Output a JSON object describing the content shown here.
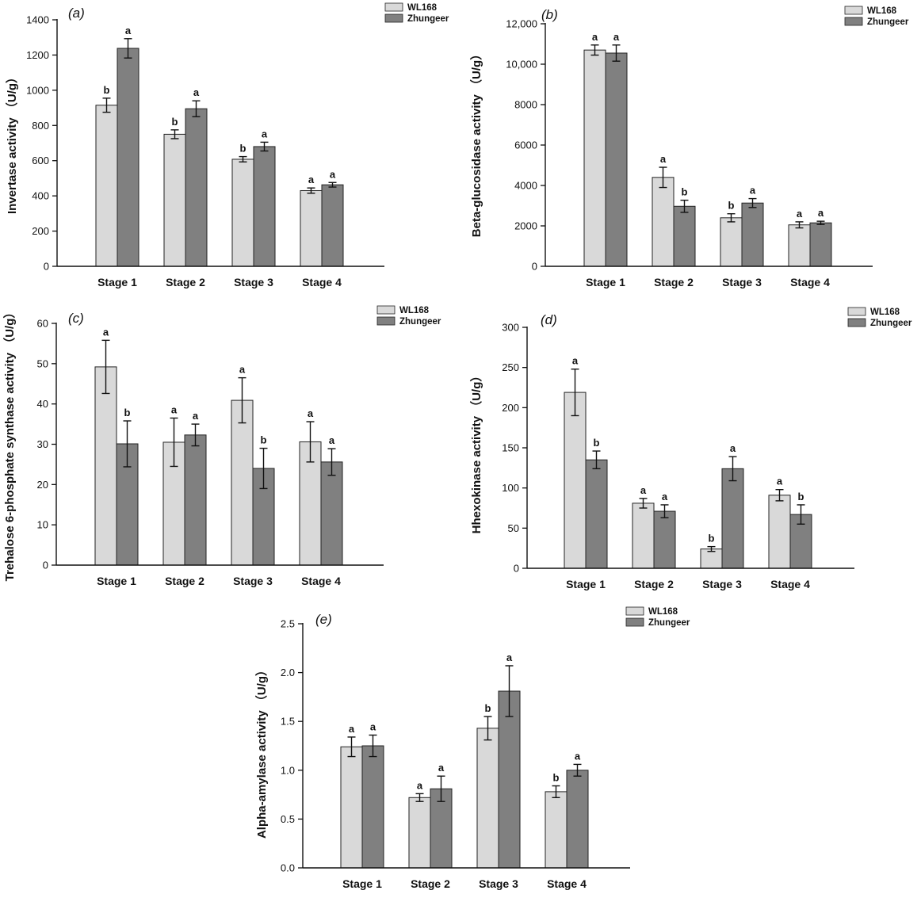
{
  "colors": {
    "WL168": "#d9d9d9",
    "Zhungeer": "#808080",
    "stroke": "#222222"
  },
  "chart_data": [
    {
      "type": "bar",
      "panel_label": "(a)",
      "categories": [
        "Stage 1",
        "Stage 2",
        "Stage 3",
        "Stage 4"
      ],
      "ylabel": "Invertase activity （U/g）",
      "ylim": [
        0,
        1400
      ],
      "yticks": [
        0,
        200,
        400,
        600,
        800,
        1000,
        1200,
        1400
      ],
      "ytick_labels": [
        "0",
        "200",
        "400",
        "600",
        "800",
        "1000",
        "1200",
        "1400"
      ],
      "legend_position": "top-right",
      "series": [
        {
          "name": "WL168",
          "values": [
            915,
            750,
            608,
            430
          ],
          "errors": [
            40,
            25,
            15,
            15
          ],
          "sig": [
            "b",
            "b",
            "b",
            "a"
          ]
        },
        {
          "name": "Zhungeer",
          "values": [
            1238,
            895,
            680,
            463
          ],
          "errors": [
            55,
            45,
            25,
            13
          ],
          "sig": [
            "a",
            "a",
            "a",
            "a"
          ]
        }
      ]
    },
    {
      "type": "bar",
      "panel_label": "(b)",
      "categories": [
        "Stage 1",
        "Stage 2",
        "Stage 3",
        "Stage 4"
      ],
      "ylabel": "Beta-glucosidase activity （U/g）",
      "ylim": [
        0,
        12000
      ],
      "yticks": [
        0,
        2000,
        4000,
        6000,
        8000,
        10000,
        12000
      ],
      "ytick_labels": [
        "0",
        "2000",
        "4000",
        "6000",
        "8000",
        "10,000",
        "12,000"
      ],
      "legend_position": "top-right",
      "series": [
        {
          "name": "WL168",
          "values": [
            10700,
            4400,
            2400,
            2050
          ],
          "errors": [
            250,
            500,
            200,
            150
          ],
          "sig": [
            "a",
            "a",
            "b",
            "a"
          ]
        },
        {
          "name": "Zhungeer",
          "values": [
            10550,
            2970,
            3130,
            2150
          ],
          "errors": [
            400,
            300,
            220,
            80
          ],
          "sig": [
            "a",
            "b",
            "a",
            "a"
          ]
        }
      ]
    },
    {
      "type": "bar",
      "panel_label": "(c)",
      "categories": [
        "Stage 1",
        "Stage 2",
        "Stage 3",
        "Stage 4"
      ],
      "ylabel": "Trehalose 6-phosphate synthase activity （U/g）",
      "ylim": [
        0,
        60
      ],
      "yticks": [
        0,
        10,
        20,
        30,
        40,
        50,
        60
      ],
      "ytick_labels": [
        "0",
        "10",
        "20",
        "30",
        "40",
        "50",
        "60"
      ],
      "legend_position": "top-right",
      "series": [
        {
          "name": "WL168",
          "values": [
            49.2,
            30.5,
            40.9,
            30.6
          ],
          "errors": [
            6.6,
            6.0,
            5.6,
            5.0
          ],
          "sig": [
            "a",
            "a",
            "a",
            "a"
          ]
        },
        {
          "name": "Zhungeer",
          "values": [
            30.1,
            32.3,
            24.0,
            25.6
          ],
          "errors": [
            5.7,
            2.7,
            5.0,
            3.3
          ],
          "sig": [
            "b",
            "a",
            "b",
            "a"
          ]
        }
      ]
    },
    {
      "type": "bar",
      "panel_label": "(d)",
      "categories": [
        "Stage 1",
        "Stage 2",
        "Stage 3",
        "Stage 4"
      ],
      "ylabel": "Hhexokinase activity （U/g）",
      "ylim": [
        0,
        300
      ],
      "yticks": [
        0,
        50,
        100,
        150,
        200,
        250,
        300
      ],
      "ytick_labels": [
        "0",
        "50",
        "100",
        "150",
        "200",
        "250",
        "300"
      ],
      "legend_position": "top-right",
      "series": [
        {
          "name": "WL168",
          "values": [
            219,
            81,
            24,
            91
          ],
          "errors": [
            29,
            6,
            3,
            7
          ],
          "sig": [
            "a",
            "a",
            "b",
            "a"
          ]
        },
        {
          "name": "Zhungeer",
          "values": [
            135,
            71,
            124,
            67
          ],
          "errors": [
            11,
            8,
            15,
            12
          ],
          "sig": [
            "b",
            "a",
            "a",
            "b"
          ]
        }
      ]
    },
    {
      "type": "bar",
      "panel_label": "(e)",
      "categories": [
        "Stage 1",
        "Stage 2",
        "Stage 3",
        "Stage 4"
      ],
      "ylabel": "Alpha-amylase activity （U/g）",
      "ylim": [
        0,
        2.5
      ],
      "yticks": [
        0,
        0.5,
        1.0,
        1.5,
        2.0,
        2.5
      ],
      "ytick_labels": [
        "0.0",
        "0.5",
        "1.0",
        "1.5",
        "2.0",
        "2.5"
      ],
      "legend_position": "top-right",
      "series": [
        {
          "name": "WL168",
          "values": [
            1.24,
            0.72,
            1.43,
            0.78
          ],
          "errors": [
            0.1,
            0.04,
            0.12,
            0.06
          ],
          "sig": [
            "a",
            "a",
            "b",
            "b"
          ]
        },
        {
          "name": "Zhungeer",
          "values": [
            1.25,
            0.81,
            1.81,
            1.0
          ],
          "errors": [
            0.11,
            0.13,
            0.26,
            0.06
          ],
          "sig": [
            "a",
            "a",
            "a",
            "a"
          ]
        }
      ]
    }
  ]
}
